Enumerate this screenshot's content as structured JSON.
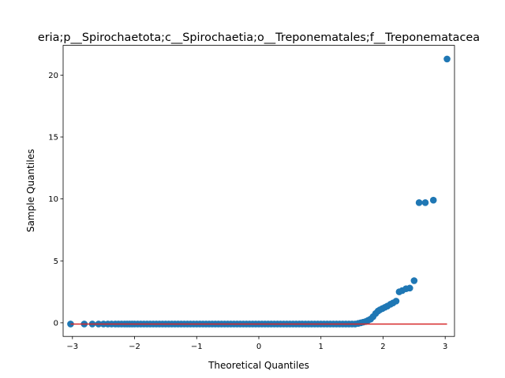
{
  "chart_data": {
    "type": "scatter",
    "title": "eria;p__Spirochaetota;c__Spirochaetia;o__Treponematales;f__Treponematacea",
    "xlabel": "Theoretical Quantiles",
    "ylabel": "Sample Quantiles",
    "xlim": [
      -3.15,
      3.15
    ],
    "ylim": [
      -1.1,
      22.4
    ],
    "xticks": [
      -3,
      -2,
      -1,
      0,
      1,
      2,
      3
    ],
    "yticks": [
      0,
      5,
      10,
      15,
      20
    ],
    "grid": false,
    "point_color": "#1f77b4",
    "line_color": "#d62728",
    "reference_line": {
      "x": [
        -3.03,
        3.03
      ],
      "y": [
        -0.1,
        -0.1
      ]
    },
    "points": {
      "x": [
        -3.03,
        -2.81,
        -2.68,
        -2.58,
        -2.5,
        -2.43,
        -2.37,
        -2.31,
        -2.26,
        -2.21,
        -2.16,
        -2.12,
        -2.08,
        -2.04,
        -2.0,
        -1.95,
        -1.9,
        -1.85,
        -1.8,
        -1.75,
        -1.7,
        -1.65,
        -1.6,
        -1.55,
        -1.5,
        -1.45,
        -1.4,
        -1.35,
        -1.3,
        -1.25,
        -1.2,
        -1.15,
        -1.1,
        -1.05,
        -1.0,
        -0.95,
        -0.9,
        -0.85,
        -0.8,
        -0.75,
        -0.7,
        -0.65,
        -0.6,
        -0.55,
        -0.5,
        -0.45,
        -0.4,
        -0.35,
        -0.3,
        -0.25,
        -0.2,
        -0.15,
        -0.1,
        -0.05,
        0.0,
        0.05,
        0.1,
        0.15,
        0.2,
        0.25,
        0.3,
        0.35,
        0.4,
        0.45,
        0.5,
        0.55,
        0.6,
        0.65,
        0.7,
        0.75,
        0.8,
        0.85,
        0.9,
        0.95,
        1.0,
        1.05,
        1.1,
        1.15,
        1.2,
        1.25,
        1.3,
        1.35,
        1.4,
        1.45,
        1.5,
        1.55,
        1.6,
        1.64,
        1.68,
        1.72,
        1.76,
        1.8,
        1.84,
        1.88,
        1.92,
        1.95,
        1.99,
        2.03,
        2.07,
        2.12,
        2.16,
        2.21,
        2.26,
        2.31,
        2.37,
        2.43,
        2.5,
        2.58,
        2.68,
        2.81,
        3.03
      ],
      "y": [
        -0.1,
        -0.1,
        -0.1,
        -0.1,
        -0.1,
        -0.1,
        -0.1,
        -0.1,
        -0.1,
        -0.1,
        -0.1,
        -0.1,
        -0.1,
        -0.1,
        -0.1,
        -0.1,
        -0.1,
        -0.1,
        -0.1,
        -0.1,
        -0.1,
        -0.1,
        -0.1,
        -0.1,
        -0.1,
        -0.1,
        -0.1,
        -0.1,
        -0.1,
        -0.1,
        -0.1,
        -0.1,
        -0.1,
        -0.1,
        -0.1,
        -0.1,
        -0.1,
        -0.1,
        -0.1,
        -0.1,
        -0.1,
        -0.1,
        -0.1,
        -0.1,
        -0.1,
        -0.1,
        -0.1,
        -0.1,
        -0.1,
        -0.1,
        -0.1,
        -0.1,
        -0.1,
        -0.1,
        -0.1,
        -0.1,
        -0.1,
        -0.1,
        -0.1,
        -0.1,
        -0.1,
        -0.1,
        -0.1,
        -0.1,
        -0.1,
        -0.1,
        -0.1,
        -0.1,
        -0.1,
        -0.1,
        -0.1,
        -0.1,
        -0.1,
        -0.1,
        -0.1,
        -0.1,
        -0.1,
        -0.1,
        -0.1,
        -0.1,
        -0.1,
        -0.1,
        -0.1,
        -0.1,
        -0.1,
        -0.1,
        -0.05,
        0.0,
        0.05,
        0.1,
        0.2,
        0.3,
        0.5,
        0.75,
        0.95,
        1.05,
        1.15,
        1.25,
        1.35,
        1.5,
        1.6,
        1.75,
        2.5,
        2.6,
        2.75,
        2.8,
        3.4,
        9.7,
        9.7,
        9.9,
        21.3
      ]
    }
  }
}
